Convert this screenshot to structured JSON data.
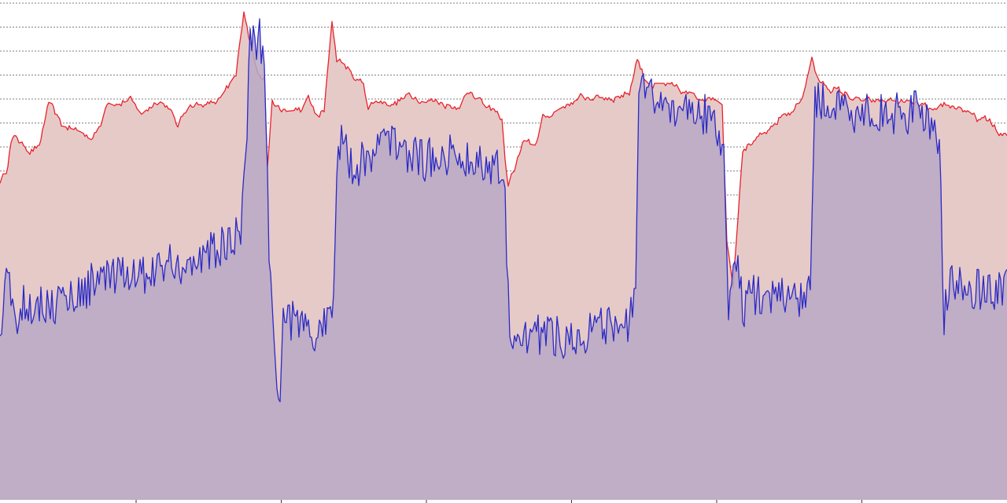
{
  "chart_data": {
    "type": "area",
    "title": "",
    "xlabel": "",
    "ylabel": "",
    "x_ticks_count": 6,
    "gridlines": "horizontal-dotted",
    "ylim": [
      0,
      210
    ],
    "colors": {
      "series_a_line": "#e8232c",
      "series_a_fill": "#e6cac8",
      "series_b_line": "#2b2bc4",
      "series_b_fill": "#b9a8c6",
      "grid": "#555555",
      "background": "#ffffff"
    },
    "series": [
      {
        "key": "a",
        "anchors": [
          [
            0,
            134
          ],
          [
            8,
            138
          ],
          [
            14,
            150
          ],
          [
            20,
            153
          ],
          [
            26,
            150
          ],
          [
            36,
            147
          ],
          [
            50,
            148
          ],
          [
            58,
            161
          ],
          [
            62,
            167
          ],
          [
            70,
            162
          ],
          [
            80,
            157
          ],
          [
            100,
            155
          ],
          [
            118,
            152
          ],
          [
            128,
            158
          ],
          [
            136,
            168
          ],
          [
            150,
            166
          ],
          [
            165,
            168
          ],
          [
            180,
            162
          ],
          [
            200,
            168
          ],
          [
            215,
            165
          ],
          [
            225,
            157
          ],
          [
            240,
            166
          ],
          [
            262,
            166
          ],
          [
            280,
            168
          ],
          [
            300,
            178
          ],
          [
            310,
            206
          ],
          [
            318,
            192
          ],
          [
            328,
            180
          ],
          [
            336,
            178
          ],
          [
            340,
            140
          ],
          [
            346,
            168
          ],
          [
            358,
            163
          ],
          [
            385,
            164
          ],
          [
            392,
            169
          ],
          [
            402,
            161
          ],
          [
            412,
            163
          ],
          [
            416,
            178
          ],
          [
            422,
            202
          ],
          [
            428,
            185
          ],
          [
            438,
            183
          ],
          [
            448,
            178
          ],
          [
            462,
            175
          ],
          [
            468,
            165
          ],
          [
            480,
            168
          ],
          [
            500,
            166
          ],
          [
            520,
            170
          ],
          [
            540,
            168
          ],
          [
            560,
            167
          ],
          [
            580,
            165
          ],
          [
            600,
            172
          ],
          [
            620,
            164
          ],
          [
            630,
            163
          ],
          [
            638,
            160
          ],
          [
            645,
            132
          ],
          [
            655,
            140
          ],
          [
            665,
            150
          ],
          [
            680,
            149
          ],
          [
            690,
            160
          ],
          [
            705,
            163
          ],
          [
            720,
            166
          ],
          [
            740,
            169
          ],
          [
            760,
            169
          ],
          [
            780,
            169
          ],
          [
            800,
            171
          ],
          [
            810,
            186
          ],
          [
            818,
            178
          ],
          [
            830,
            174
          ],
          [
            850,
            174
          ],
          [
            870,
            171
          ],
          [
            890,
            169
          ],
          [
            910,
            169
          ],
          [
            918,
            167
          ],
          [
            924,
            108
          ],
          [
            928,
            100
          ],
          [
            932,
            90
          ],
          [
            938,
            120
          ],
          [
            944,
            148
          ],
          [
            954,
            150
          ],
          [
            965,
            152
          ],
          [
            980,
            155
          ],
          [
            995,
            162
          ],
          [
            1008,
            163
          ],
          [
            1020,
            170
          ],
          [
            1028,
            180
          ],
          [
            1032,
            186
          ],
          [
            1040,
            176
          ],
          [
            1055,
            173
          ],
          [
            1070,
            171
          ],
          [
            1090,
            168
          ],
          [
            1110,
            167
          ],
          [
            1130,
            168
          ],
          [
            1150,
            167
          ],
          [
            1170,
            166
          ],
          [
            1190,
            162
          ],
          [
            1200,
            166
          ],
          [
            1220,
            165
          ],
          [
            1240,
            160
          ],
          [
            1260,
            159
          ],
          [
            1270,
            153
          ],
          [
            1280,
            153
          ]
        ],
        "noise": 2.8
      },
      {
        "key": "b",
        "anchors": [
          [
            0,
            64
          ],
          [
            6,
            90
          ],
          [
            12,
            98
          ],
          [
            18,
            72
          ],
          [
            30,
            84
          ],
          [
            50,
            82
          ],
          [
            70,
            82
          ],
          [
            90,
            86
          ],
          [
            110,
            88
          ],
          [
            122,
            95
          ],
          [
            140,
            92
          ],
          [
            160,
            94
          ],
          [
            180,
            95
          ],
          [
            200,
            97
          ],
          [
            220,
            100
          ],
          [
            240,
            98
          ],
          [
            260,
            102
          ],
          [
            280,
            106
          ],
          [
            300,
            110
          ],
          [
            306,
            116
          ],
          [
            312,
            140
          ],
          [
            318,
            198
          ],
          [
            324,
            192
          ],
          [
            330,
            197
          ],
          [
            336,
            182
          ],
          [
            342,
            108
          ],
          [
            350,
            54
          ],
          [
            356,
            48
          ],
          [
            360,
            76
          ],
          [
            370,
            76
          ],
          [
            385,
            72
          ],
          [
            400,
            68
          ],
          [
            410,
            72
          ],
          [
            418,
            80
          ],
          [
            424,
            88
          ],
          [
            430,
            150
          ],
          [
            440,
            147
          ],
          [
            450,
            137
          ],
          [
            460,
            143
          ],
          [
            480,
            149
          ],
          [
            500,
            151
          ],
          [
            520,
            146
          ],
          [
            540,
            142
          ],
          [
            560,
            146
          ],
          [
            580,
            144
          ],
          [
            600,
            143
          ],
          [
            620,
            141
          ],
          [
            640,
            140
          ],
          [
            648,
            76
          ],
          [
            655,
            66
          ],
          [
            665,
            67
          ],
          [
            680,
            70
          ],
          [
            700,
            70
          ],
          [
            720,
            68
          ],
          [
            740,
            70
          ],
          [
            760,
            72
          ],
          [
            780,
            72
          ],
          [
            800,
            75
          ],
          [
            808,
            82
          ],
          [
            812,
            170
          ],
          [
            820,
            174
          ],
          [
            830,
            167
          ],
          [
            850,
            166
          ],
          [
            870,
            164
          ],
          [
            890,
            162
          ],
          [
            910,
            160
          ],
          [
            920,
            146
          ],
          [
            926,
            78
          ],
          [
            930,
            98
          ],
          [
            938,
            104
          ],
          [
            944,
            76
          ],
          [
            950,
            88
          ],
          [
            960,
            86
          ],
          [
            980,
            86
          ],
          [
            1000,
            84
          ],
          [
            1020,
            86
          ],
          [
            1030,
            92
          ],
          [
            1036,
            166
          ],
          [
            1040,
            169
          ],
          [
            1060,
            164
          ],
          [
            1080,
            162
          ],
          [
            1100,
            164
          ],
          [
            1120,
            162
          ],
          [
            1140,
            162
          ],
          [
            1160,
            163
          ],
          [
            1180,
            162
          ],
          [
            1194,
            150
          ],
          [
            1200,
            77
          ],
          [
            1206,
            90
          ],
          [
            1220,
            89
          ],
          [
            1240,
            89
          ],
          [
            1260,
            88
          ],
          [
            1280,
            91
          ]
        ],
        "noise": 9
      }
    ]
  }
}
